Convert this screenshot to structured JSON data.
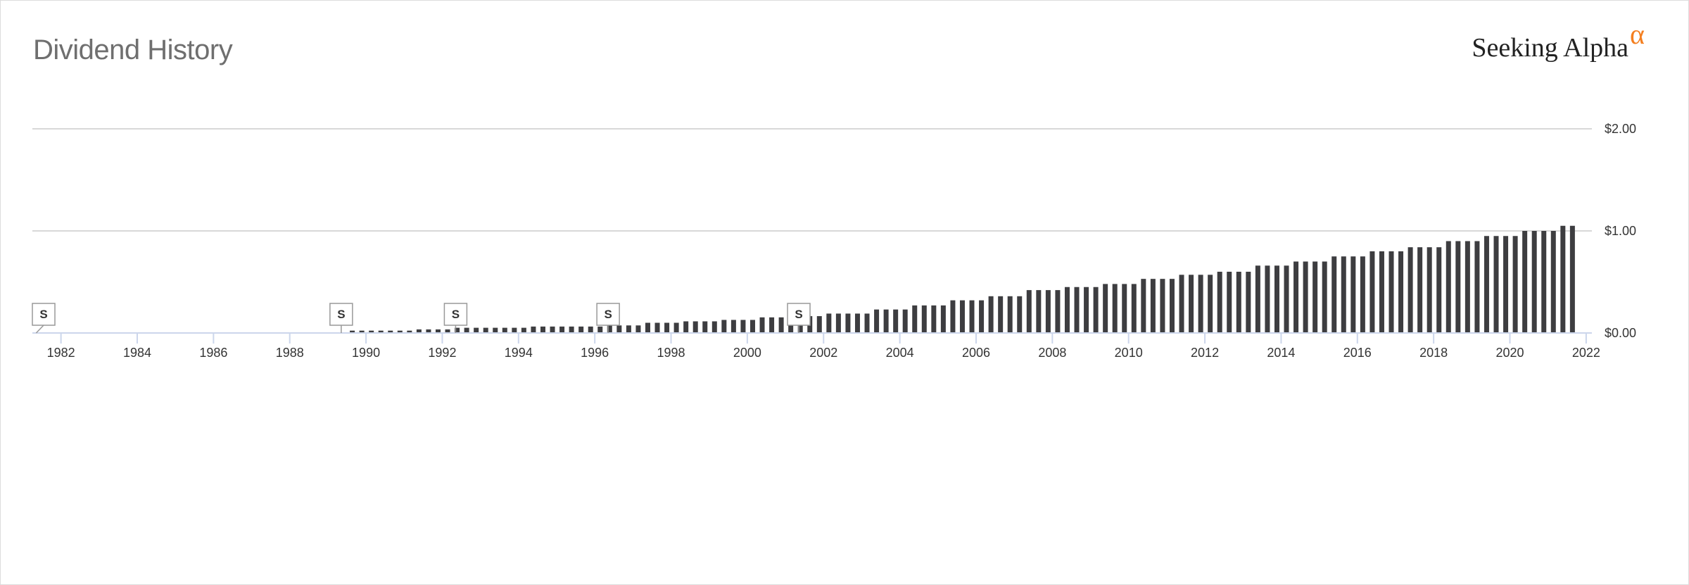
{
  "header": {
    "title": "Dividend History",
    "logo_text": "Seeking Alpha",
    "logo_symbol": "α"
  },
  "colors": {
    "bar": "#3d3d40",
    "gridline": "#d8d8d8",
    "axis": "#ccd6eb",
    "logo_accent": "#f47f20",
    "title": "#6f6f6f"
  },
  "chart_data": {
    "type": "bar",
    "title": "Dividend History",
    "xlabel": "",
    "ylabel": "",
    "frequency": "quarterly",
    "xlim": [
      1981.25,
      2022.15
    ],
    "ylim": [
      0,
      2
    ],
    "grid": true,
    "legend": "none",
    "x_ticks": [
      "1982",
      "1984",
      "1986",
      "1988",
      "1990",
      "1992",
      "1994",
      "1996",
      "1998",
      "2000",
      "2002",
      "2004",
      "2006",
      "2008",
      "2010",
      "2012",
      "2014",
      "2016",
      "2018",
      "2020",
      "2022"
    ],
    "y_ticks": [
      {
        "value": 2,
        "label": "$2.00"
      },
      {
        "value": 1,
        "label": "$1.00"
      },
      {
        "value": 0,
        "label": "$0.00"
      }
    ],
    "dividend_levels": [
      {
        "from": "1989-Q3",
        "to": "1991-Q1",
        "amount": 0.023
      },
      {
        "from": "1991-Q2",
        "to": "1992-Q1",
        "amount": 0.035
      },
      {
        "from": "1992-Q2",
        "to": "1994-Q1",
        "amount": 0.051
      },
      {
        "from": "1994-Q2",
        "to": "1996-Q1",
        "amount": 0.063
      },
      {
        "from": "1996-Q2",
        "to": "1997-Q1",
        "amount": 0.074
      },
      {
        "from": "1997-Q2",
        "to": "1998-Q1",
        "amount": 0.1
      },
      {
        "from": "1998-Q2",
        "to": "1999-Q1",
        "amount": 0.114
      },
      {
        "from": "1999-Q2",
        "to": "2000-Q1",
        "amount": 0.128
      },
      {
        "from": "2000-Q2",
        "to": "2001-Q1",
        "amount": 0.153
      },
      {
        "from": "2001-Q2",
        "to": "2001-Q4",
        "amount": 0.165
      },
      {
        "from": "2002-Q1",
        "to": "2003-Q1",
        "amount": 0.19
      },
      {
        "from": "2003-Q2",
        "to": "2004-Q1",
        "amount": 0.23
      },
      {
        "from": "2004-Q2",
        "to": "2005-Q1",
        "amount": 0.27
      },
      {
        "from": "2005-Q2",
        "to": "2006-Q1",
        "amount": 0.32
      },
      {
        "from": "2006-Q2",
        "to": "2007-Q1",
        "amount": 0.36
      },
      {
        "from": "2007-Q2",
        "to": "2008-Q1",
        "amount": 0.42
      },
      {
        "from": "2008-Q2",
        "to": "2009-Q1",
        "amount": 0.45
      },
      {
        "from": "2009-Q2",
        "to": "2010-Q1",
        "amount": 0.48
      },
      {
        "from": "2010-Q2",
        "to": "2011-Q1",
        "amount": 0.53
      },
      {
        "from": "2011-Q2",
        "to": "2012-Q1",
        "amount": 0.57
      },
      {
        "from": "2012-Q2",
        "to": "2013-Q1",
        "amount": 0.6
      },
      {
        "from": "2013-Q2",
        "to": "2014-Q1",
        "amount": 0.66
      },
      {
        "from": "2014-Q2",
        "to": "2015-Q1",
        "amount": 0.7
      },
      {
        "from": "2015-Q2",
        "to": "2016-Q1",
        "amount": 0.75
      },
      {
        "from": "2016-Q2",
        "to": "2017-Q1",
        "amount": 0.8
      },
      {
        "from": "2017-Q2",
        "to": "2018-Q1",
        "amount": 0.84
      },
      {
        "from": "2018-Q2",
        "to": "2019-Q1",
        "amount": 0.9
      },
      {
        "from": "2019-Q2",
        "to": "2020-Q1",
        "amount": 0.95
      },
      {
        "from": "2020-Q2",
        "to": "2021-Q1",
        "amount": 1.0
      },
      {
        "from": "2021-Q2",
        "to": "2021-Q3",
        "amount": 1.05
      }
    ],
    "split_markers": [
      {
        "label": "S",
        "date": "1981-Q2"
      },
      {
        "label": "S",
        "date": "1989-Q2"
      },
      {
        "label": "S",
        "date": "1992-Q2"
      },
      {
        "label": "S",
        "date": "1996-Q2"
      },
      {
        "label": "S",
        "date": "2001-Q2"
      }
    ]
  }
}
